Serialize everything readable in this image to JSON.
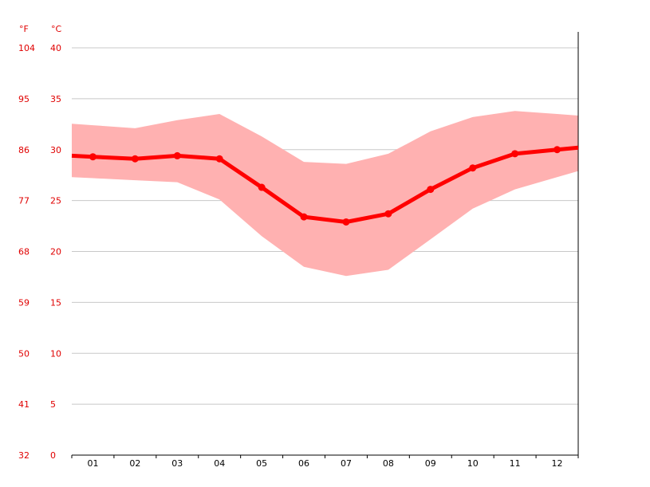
{
  "colors": {
    "line": "#ff0000",
    "band": "#ffb1b1",
    "grid": "#c8c8c8",
    "axis": "#000000",
    "y_label": "#e00000",
    "x_label": "#000000"
  },
  "chart_data": {
    "type": "line",
    "title": "",
    "xlabel": "",
    "ylabel": "",
    "unit_labels": {
      "fahrenheit": "°F",
      "celsius": "°C"
    },
    "categories": [
      "01",
      "02",
      "03",
      "04",
      "05",
      "06",
      "07",
      "08",
      "09",
      "10",
      "11",
      "12"
    ],
    "ylim": [
      0,
      40
    ],
    "celsius_ticks": [
      "0",
      "5",
      "10",
      "15",
      "20",
      "25",
      "30",
      "35",
      "40"
    ],
    "fahrenheit_ticks": [
      "32",
      "41",
      "50",
      "59",
      "68",
      "77",
      "86",
      "95",
      "104"
    ],
    "grid": true,
    "series": [
      {
        "role": "mean",
        "values": [
          29.3,
          29.1,
          29.4,
          29.1,
          26.3,
          23.4,
          22.9,
          23.7,
          26.1,
          28.2,
          29.6,
          30.0
        ]
      }
    ],
    "band": {
      "upper": [
        32.4,
        32.1,
        32.9,
        33.5,
        31.3,
        28.8,
        28.6,
        29.6,
        31.8,
        33.2,
        33.8,
        33.5
      ],
      "lower": [
        27.2,
        27.0,
        26.8,
        25.1,
        21.5,
        18.5,
        17.6,
        18.2,
        21.2,
        24.2,
        26.1,
        27.3
      ]
    }
  }
}
